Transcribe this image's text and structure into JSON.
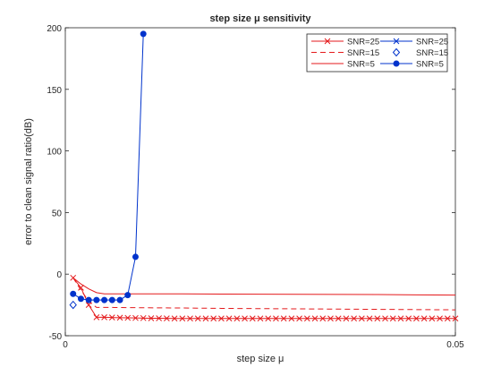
{
  "chart_data": {
    "type": "line",
    "title": "step size μ sensitivity",
    "xlabel": "step size μ",
    "ylabel": "error to clean signal ratio(dB)",
    "xlim": [
      0,
      0.05
    ],
    "ylim": [
      -50,
      200
    ],
    "xticks": [
      0,
      0.05
    ],
    "xtick_labels": [
      "0",
      "0.05"
    ],
    "yticks": [
      -50,
      0,
      50,
      100,
      150,
      200
    ],
    "ytick_labels": [
      "-50",
      "0",
      "50",
      "100",
      "150",
      "200"
    ],
    "grid": false,
    "legend_position": "top-right",
    "series": [
      {
        "name": "SNR=25",
        "color": "#e41a1c",
        "linestyle": "solid",
        "marker": "x",
        "x": [
          0.001,
          0.002,
          0.003,
          0.004,
          0.005,
          0.006,
          0.007,
          0.008,
          0.009,
          0.01,
          0.011,
          0.012,
          0.013,
          0.014,
          0.015,
          0.016,
          0.017,
          0.018,
          0.019,
          0.02,
          0.021,
          0.022,
          0.023,
          0.024,
          0.025,
          0.026,
          0.027,
          0.028,
          0.029,
          0.03,
          0.031,
          0.032,
          0.033,
          0.034,
          0.035,
          0.036,
          0.037,
          0.038,
          0.039,
          0.04,
          0.041,
          0.042,
          0.043,
          0.044,
          0.045,
          0.046,
          0.047,
          0.048,
          0.049,
          0.05
        ],
        "y": [
          -3,
          -11,
          -25,
          -35,
          -35,
          -35.2,
          -35.4,
          -35.5,
          -35.6,
          -35.7,
          -35.8,
          -35.8,
          -35.9,
          -36,
          -36,
          -36,
          -36,
          -36,
          -36,
          -36,
          -36,
          -36,
          -36,
          -36,
          -36,
          -36,
          -36,
          -36,
          -36,
          -36,
          -36,
          -36,
          -36,
          -36,
          -36,
          -36,
          -36,
          -36,
          -36,
          -36,
          -36,
          -36,
          -36,
          -36,
          -36,
          -36,
          -36,
          -36,
          -36,
          -36
        ]
      },
      {
        "name": "SNR=15",
        "color": "#e41a1c",
        "linestyle": "dashed",
        "marker": "none",
        "x": [
          0.001,
          0.002,
          0.003,
          0.004,
          0.005,
          0.01,
          0.015,
          0.02,
          0.025,
          0.03,
          0.035,
          0.04,
          0.045,
          0.05
        ],
        "y": [
          -3,
          -13,
          -22,
          -27,
          -27,
          -27.3,
          -27.5,
          -27.8,
          -28,
          -28.2,
          -28.4,
          -28.6,
          -28.8,
          -29
        ]
      },
      {
        "name": "SNR=5",
        "color": "#e41a1c",
        "linestyle": "solid",
        "marker": "none",
        "x": [
          0.001,
          0.002,
          0.003,
          0.004,
          0.005,
          0.01,
          0.015,
          0.02,
          0.025,
          0.03,
          0.035,
          0.04,
          0.045,
          0.05
        ],
        "y": [
          -3,
          -8,
          -12,
          -15,
          -16,
          -16,
          -16,
          -16.2,
          -16.3,
          -16.4,
          -16.5,
          -16.6,
          -16.8,
          -17
        ]
      },
      {
        "name": "SNR=25",
        "color": "#0033cc",
        "linestyle": "solid",
        "marker": "x",
        "x": [],
        "y": []
      },
      {
        "name": "SNR=15",
        "color": "#0033cc",
        "linestyle": "none",
        "marker": "diamond",
        "x": [
          0.001
        ],
        "y": [
          -25
        ]
      },
      {
        "name": "SNR=5",
        "color": "#0033cc",
        "linestyle": "solid",
        "marker": "filled-circle",
        "x": [
          0.001,
          0.002,
          0.003,
          0.004,
          0.005,
          0.006,
          0.007,
          0.008,
          0.009,
          0.01,
          0.011
        ],
        "y": [
          -16,
          -20,
          -21,
          -21,
          -21,
          -21,
          -21,
          -17,
          14,
          195,
          null
        ]
      }
    ]
  }
}
